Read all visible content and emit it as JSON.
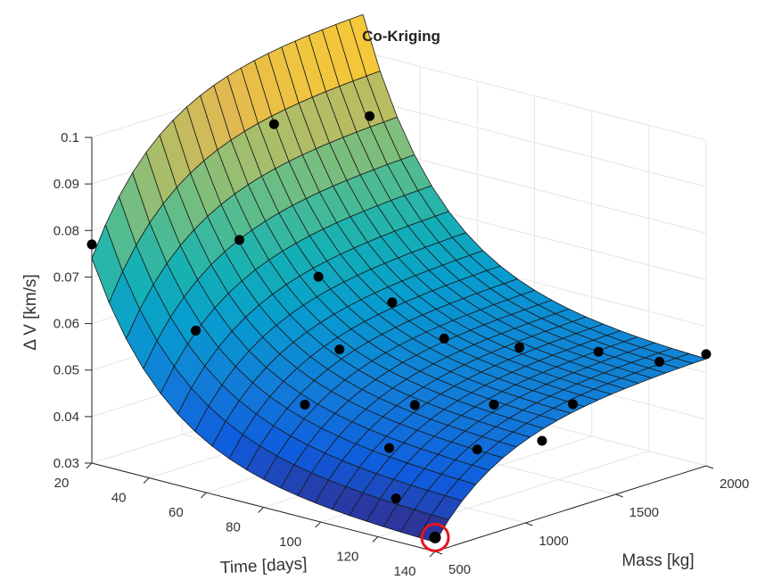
{
  "chart_data": {
    "type": "surface",
    "title": "Co-Kriging",
    "xlabel": "Time [days]",
    "ylabel": "Mass [kg]",
    "zlabel": "Δ V [km/s]",
    "x_ticks": [
      "20",
      "40",
      "60",
      "80",
      "100",
      "120",
      "140"
    ],
    "y_ticks": [
      "500",
      "1000",
      "1500",
      "2000"
    ],
    "z_ticks": [
      "0.03",
      "0.04",
      "0.05",
      "0.06",
      "0.07",
      "0.08",
      "0.09",
      "0.1"
    ],
    "xlim": [
      20,
      140
    ],
    "ylim": [
      500,
      2000
    ],
    "zlim": [
      0.03,
      0.1
    ],
    "colormap": "parula",
    "grid": true,
    "surface": {
      "x": [
        20,
        140
      ],
      "y": [
        500,
        2000
      ],
      "corner_values": {
        "x20_y500": 0.074,
        "x140_y500": 0.032,
        "x20_y2000": 0.108,
        "x140_y2000": 0.053
      },
      "x_decay": 4.5,
      "y_decay": 4.0
    },
    "sample_points": [
      {
        "x": 20,
        "y": 500,
        "z": 0.077
      },
      {
        "x": 140,
        "y": 500,
        "z": 0.033
      },
      {
        "x": 140,
        "y": 2000,
        "z": 0.054
      },
      {
        "x": 30,
        "y": 1350,
        "z": 0.094
      },
      {
        "x": 35,
        "y": 1800,
        "z": 0.091
      },
      {
        "x": 40,
        "y": 1000,
        "z": 0.075
      },
      {
        "x": 50,
        "y": 600,
        "z": 0.062
      },
      {
        "x": 55,
        "y": 1200,
        "z": 0.067
      },
      {
        "x": 65,
        "y": 1450,
        "z": 0.06
      },
      {
        "x": 75,
        "y": 1000,
        "z": 0.057
      },
      {
        "x": 80,
        "y": 1500,
        "z": 0.054
      },
      {
        "x": 85,
        "y": 650,
        "z": 0.051
      },
      {
        "x": 95,
        "y": 1100,
        "z": 0.047
      },
      {
        "x": 100,
        "y": 1600,
        "z": 0.054
      },
      {
        "x": 105,
        "y": 800,
        "z": 0.043
      },
      {
        "x": 110,
        "y": 1300,
        "z": 0.047
      },
      {
        "x": 115,
        "y": 1800,
        "z": 0.053
      },
      {
        "x": 120,
        "y": 1050,
        "z": 0.042
      },
      {
        "x": 125,
        "y": 1500,
        "z": 0.047
      },
      {
        "x": 130,
        "y": 1900,
        "z": 0.052
      },
      {
        "x": 120,
        "y": 600,
        "z": 0.037
      },
      {
        "x": 130,
        "y": 1250,
        "z": 0.043
      }
    ],
    "highlighted_point": {
      "x": 140,
      "y": 500,
      "z": 0.033,
      "marker": "red-circle"
    }
  },
  "colors": {
    "grid": "#e6e6e6",
    "axis": "#262626",
    "highlight": "#e8141c",
    "point": "#000000",
    "edge": "#1a1a1a"
  }
}
